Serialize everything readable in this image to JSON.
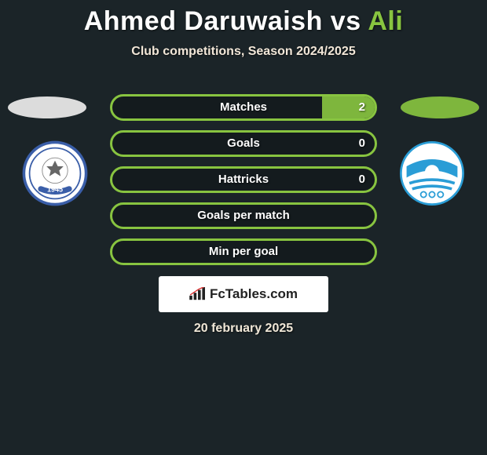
{
  "title": {
    "player1": "Ahmed Daruwaish",
    "vs": " vs ",
    "player2": "Ali"
  },
  "subtitle": "Club competitions, Season 2024/2025",
  "colors": {
    "player1": "#dcdcdc",
    "player2": "#88c440",
    "player1_fill": "#c8c8c8",
    "player2_fill": "#7eb63d",
    "title_p1": "#ffffff"
  },
  "stats": [
    {
      "label": "Matches",
      "v1": "",
      "v2": "2",
      "f1": 0,
      "f2": 20
    },
    {
      "label": "Goals",
      "v1": "",
      "v2": "0",
      "f1": 0,
      "f2": 0
    },
    {
      "label": "Hattricks",
      "v1": "",
      "v2": "0",
      "f1": 0,
      "f2": 0
    },
    {
      "label": "Goals per match",
      "v1": "",
      "v2": "",
      "f1": 0,
      "f2": 0
    },
    {
      "label": "Min per goal",
      "v1": "",
      "v2": "",
      "f1": 0,
      "f2": 0
    }
  ],
  "brand": "FcTables.com",
  "date": "20 february 2025",
  "logos": {
    "left": {
      "primary": "#3a5ea8",
      "secondary": "#ffffff",
      "text": "1945"
    },
    "right": {
      "primary": "#2a9dd6",
      "secondary": "#ffffff"
    }
  }
}
